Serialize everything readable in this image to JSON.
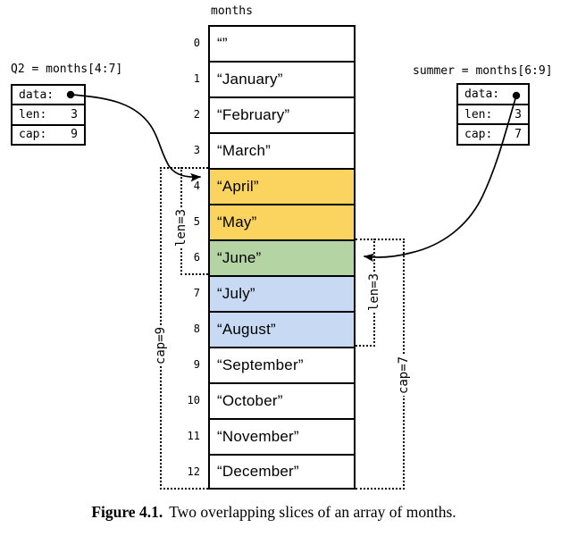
{
  "array": {
    "title": "months",
    "cells": [
      {
        "index": "0",
        "value": "“”",
        "bg": null
      },
      {
        "index": "1",
        "value": "“January”",
        "bg": null
      },
      {
        "index": "2",
        "value": "“February”",
        "bg": null
      },
      {
        "index": "3",
        "value": "“March”",
        "bg": null
      },
      {
        "index": "4",
        "value": "“April”",
        "bg": "q2"
      },
      {
        "index": "5",
        "value": "“May”",
        "bg": "q2"
      },
      {
        "index": "6",
        "value": "“June”",
        "bg": "overlap"
      },
      {
        "index": "7",
        "value": "“July”",
        "bg": "summer"
      },
      {
        "index": "8",
        "value": "“August”",
        "bg": "summer"
      },
      {
        "index": "9",
        "value": "“September”",
        "bg": null
      },
      {
        "index": "10",
        "value": "“October”",
        "bg": null
      },
      {
        "index": "11",
        "value": "“November”",
        "bg": null
      },
      {
        "index": "12",
        "value": "“December”",
        "bg": null
      }
    ]
  },
  "slices": {
    "q2": {
      "decl": "Q2 = months[4:7]",
      "data_label": "data:",
      "len_label": "len:",
      "len_value": "3",
      "cap_label": "cap:",
      "cap_value": "9",
      "bracket_len": "len=3",
      "bracket_cap": "cap=9"
    },
    "summer": {
      "decl": "summer = months[6:9]",
      "data_label": "data:",
      "len_label": "len:",
      "len_value": "3",
      "cap_label": "cap:",
      "cap_value": "7",
      "bracket_len": "len=3",
      "bracket_cap": "cap=7"
    }
  },
  "colors": {
    "q2_slice": "#FBD35F",
    "overlap_slice": "#B4D4A4",
    "summer_slice": "#C8DAF3",
    "ink": "#000000"
  },
  "caption": {
    "label": "Figure 4.1.",
    "text": "Two overlapping slices of an array of months."
  }
}
